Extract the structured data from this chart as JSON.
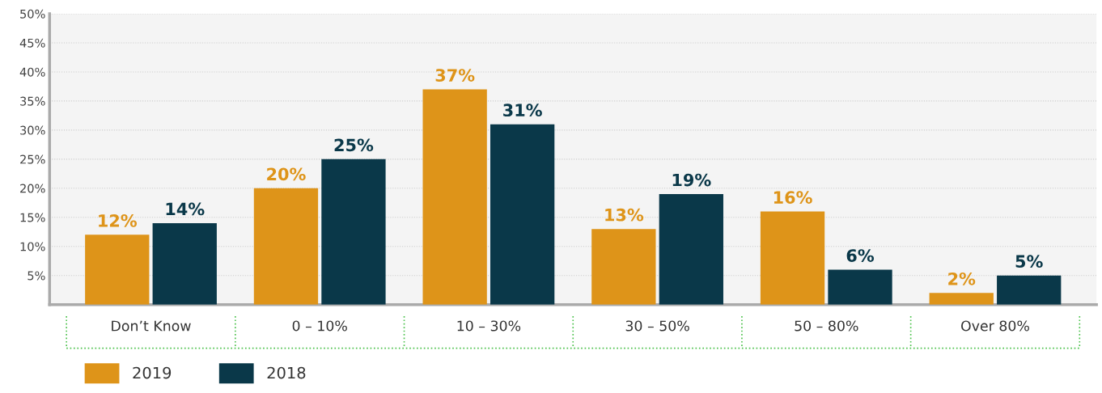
{
  "chart_data": {
    "type": "bar",
    "categories": [
      "Don’t Know",
      "0 – 10%",
      "10 – 30%",
      "30 – 50%",
      "50 – 80%",
      "Over 80%"
    ],
    "series": [
      {
        "name": "2019",
        "color": "#de9419",
        "values": [
          12,
          20,
          37,
          13,
          16,
          2
        ],
        "value_labels": [
          "12%",
          "20%",
          "37%",
          "13%",
          "16%",
          "2%"
        ]
      },
      {
        "name": "2018",
        "color": "#0a3849",
        "values": [
          14,
          25,
          31,
          19,
          6,
          5
        ],
        "value_labels": [
          "14%",
          "25%",
          "31%",
          "19%",
          "6%",
          "5%"
        ]
      }
    ],
    "ylim": [
      0,
      50
    ],
    "yticks": [
      {
        "value": 5,
        "label": "5%"
      },
      {
        "value": 10,
        "label": "10%"
      },
      {
        "value": 15,
        "label": "15%"
      },
      {
        "value": 20,
        "label": "20%"
      },
      {
        "value": 25,
        "label": "25%"
      },
      {
        "value": 30,
        "label": "30%"
      },
      {
        "value": 35,
        "label": "35%"
      },
      {
        "value": 40,
        "label": "40%"
      },
      {
        "value": 45,
        "label": "45%"
      },
      {
        "value": 50,
        "label": "50%"
      }
    ],
    "grid": "y",
    "legend": "bottom left"
  }
}
